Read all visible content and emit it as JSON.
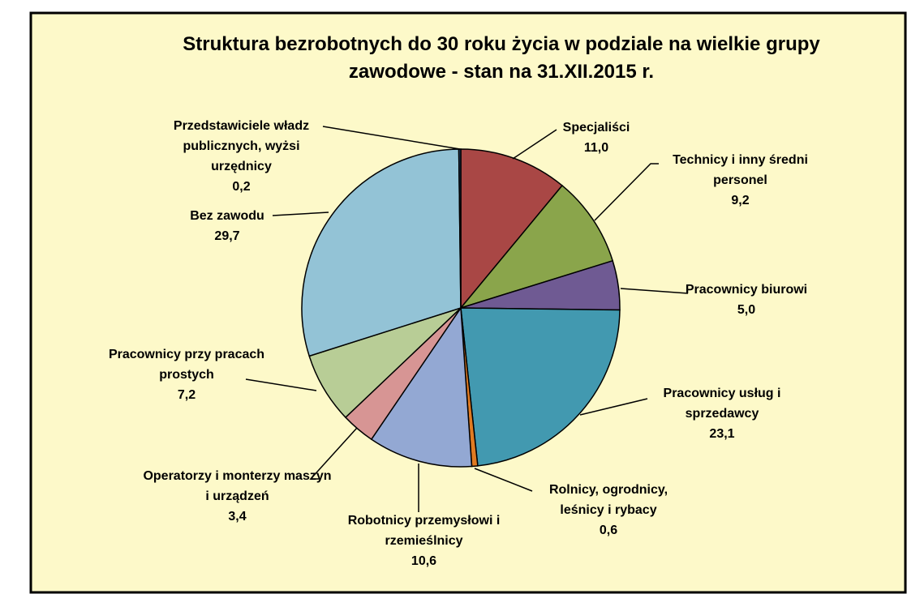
{
  "chart_data": {
    "type": "pie",
    "title": "Struktura bezrobotnych do 30 roku życia w podziale na wielkie grupy zawodowe - stan na 31.XII.2015 r.",
    "categories": [
      "Specjaliści",
      "Technicy i inny średni personel",
      "Pracownicy biurowi",
      "Pracownicy usług i sprzedawcy",
      "Rolnicy, ogrodnicy, leśnicy i rybacy",
      "Robotnicy przemysłowi i rzemieślnicy",
      "Operatorzy i monterzy maszyn i urządzeń",
      "Pracownicy przy pracach prostych",
      "Bez zawodu",
      "Przedstawiciele władz publicznych, wyżsi urzędnicy"
    ],
    "values": [
      11.0,
      9.2,
      5.0,
      23.1,
      0.6,
      10.6,
      3.4,
      7.2,
      29.7,
      0.2
    ],
    "value_labels": [
      "11,0",
      "9,2",
      "5,0",
      "23,1",
      "0,6",
      "10,6",
      "3,4",
      "7,2",
      "29,7",
      "0,2"
    ],
    "colors": [
      "#a94745",
      "#8aa54b",
      "#6f5a93",
      "#4299b0",
      "#e07b22",
      "#93a8d3",
      "#d79594",
      "#b8cd96",
      "#93c3d6",
      "#2b4a74"
    ]
  }
}
